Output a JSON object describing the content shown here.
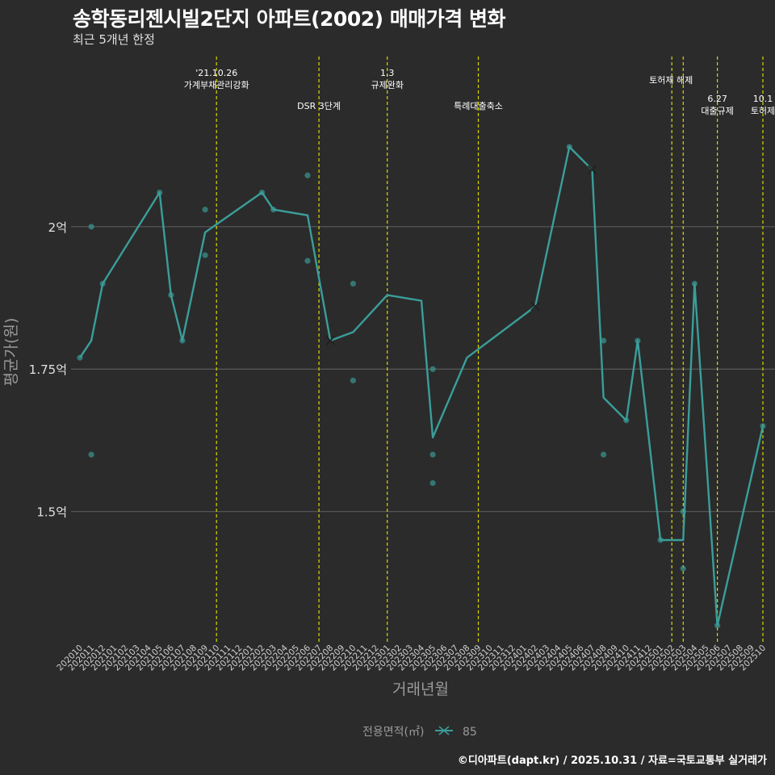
{
  "header": {
    "title": "송학동리젠시빌2단지 아파트(2002) 매매가격 변화",
    "subtitle": "최근 5개년 한정"
  },
  "footer": {
    "credit": "©디아파트(dapt.kr) / 2025.10.31 / 자료=국토교통부 실거래가"
  },
  "colors": {
    "background": "#2b2b2b",
    "line": "#3a9e9a",
    "event": "#d8d800",
    "grid": "#5a5a5a"
  },
  "chart_data": {
    "type": "line",
    "title": "송학동리젠시빌2단지 아파트(2002) 매매가격 변화",
    "xlabel": "거래년월",
    "ylabel": "평균가(원)",
    "ylim": [
      1.27,
      2.31
    ],
    "yticks": [
      {
        "v": 1.5,
        "label": "1.5억"
      },
      {
        "v": 1.75,
        "label": "1.75억"
      },
      {
        "v": 2.0,
        "label": "2억"
      }
    ],
    "categories": [
      "202010",
      "202011",
      "202012",
      "202101",
      "202102",
      "202103",
      "202104",
      "202105",
      "202106",
      "202107",
      "202108",
      "202109",
      "202110",
      "202111",
      "202112",
      "202201",
      "202202",
      "202203",
      "202204",
      "202205",
      "202206",
      "202207",
      "202208",
      "202209",
      "202210",
      "202211",
      "202212",
      "202301",
      "202302",
      "202303",
      "202304",
      "202305",
      "202306",
      "202307",
      "202308",
      "202309",
      "202310",
      "202311",
      "202312",
      "202401",
      "202402",
      "202403",
      "202404",
      "202405",
      "202406",
      "202407",
      "202408",
      "202409",
      "202410",
      "202411",
      "202412",
      "202501",
      "202502",
      "202503",
      "202504",
      "202505",
      "202506",
      "202507",
      "202508",
      "202509",
      "202510"
    ],
    "legend": {
      "title": "전용면적(㎡)",
      "items": [
        "85"
      ]
    },
    "series": [
      {
        "name": "85",
        "line": [
          {
            "x": "202010",
            "y": 1.77
          },
          {
            "x": "202011",
            "y": 1.8
          },
          {
            "x": "202012",
            "y": 1.9
          },
          {
            "x": "202105",
            "y": 2.06
          },
          {
            "x": "202106",
            "y": 1.88
          },
          {
            "x": "202107",
            "y": 1.8
          },
          {
            "x": "202109",
            "y": 1.99
          },
          {
            "x": "202202",
            "y": 2.06
          },
          {
            "x": "202203",
            "y": 2.03
          },
          {
            "x": "202206",
            "y": 2.02
          },
          {
            "x": "202208",
            "y": 1.8
          },
          {
            "x": "202210",
            "y": 1.815
          },
          {
            "x": "202301",
            "y": 1.88
          },
          {
            "x": "202304",
            "y": 1.87
          },
          {
            "x": "202305",
            "y": 1.63
          },
          {
            "x": "202308",
            "y": 1.77
          },
          {
            "x": "202402",
            "y": 1.86
          },
          {
            "x": "202405",
            "y": 2.14
          },
          {
            "x": "202407",
            "y": 2.1
          },
          {
            "x": "202408",
            "y": 1.7
          },
          {
            "x": "202410",
            "y": 1.66
          },
          {
            "x": "202411",
            "y": 1.8
          },
          {
            "x": "202501",
            "y": 1.45
          },
          {
            "x": "202503",
            "y": 1.45
          },
          {
            "x": "202504",
            "y": 1.9
          },
          {
            "x": "202506",
            "y": 1.3
          },
          {
            "x": "202510",
            "y": 1.65
          }
        ],
        "points": [
          {
            "x": "202010",
            "y": 1.77
          },
          {
            "x": "202011",
            "y": 2.0
          },
          {
            "x": "202011",
            "y": 1.6
          },
          {
            "x": "202012",
            "y": 1.9
          },
          {
            "x": "202105",
            "y": 2.06
          },
          {
            "x": "202106",
            "y": 1.88
          },
          {
            "x": "202107",
            "y": 1.8
          },
          {
            "x": "202109",
            "y": 2.03
          },
          {
            "x": "202109",
            "y": 1.95
          },
          {
            "x": "202202",
            "y": 2.06
          },
          {
            "x": "202203",
            "y": 2.03
          },
          {
            "x": "202206",
            "y": 2.09
          },
          {
            "x": "202206",
            "y": 1.94
          },
          {
            "x": "202210",
            "y": 1.9
          },
          {
            "x": "202210",
            "y": 1.73
          },
          {
            "x": "202305",
            "y": 1.75
          },
          {
            "x": "202305",
            "y": 1.6
          },
          {
            "x": "202305",
            "y": 1.55
          },
          {
            "x": "202405",
            "y": 2.14
          },
          {
            "x": "202408",
            "y": 1.8
          },
          {
            "x": "202408",
            "y": 1.6
          },
          {
            "x": "202410",
            "y": 1.66
          },
          {
            "x": "202411",
            "y": 1.8
          },
          {
            "x": "202501",
            "y": 1.45
          },
          {
            "x": "202503",
            "y": 1.5
          },
          {
            "x": "202503",
            "y": 1.4
          },
          {
            "x": "202504",
            "y": 1.9
          },
          {
            "x": "202506",
            "y": 1.3
          },
          {
            "x": "202510",
            "y": 1.65
          }
        ],
        "cross_markers": [
          {
            "x": "202208",
            "y": 1.8
          },
          {
            "x": "202402",
            "y": 1.86
          },
          {
            "x": "202407",
            "y": 2.1
          }
        ]
      }
    ],
    "events": [
      {
        "x": "202110",
        "lines": [
          "'21.10.26",
          "가계부채관리강화"
        ],
        "row": "top"
      },
      {
        "x": "202207",
        "lines": [
          "DSR 3단계"
        ],
        "row": "mid"
      },
      {
        "x": "202301",
        "lines": [
          "1.3",
          "규제완화"
        ],
        "row": "top"
      },
      {
        "x": "202309",
        "lines": [
          "특례대출축소"
        ],
        "row": "mid"
      },
      {
        "x": "202502",
        "lines": [
          "토허제 해제"
        ],
        "row": "top2"
      },
      {
        "x": "202503",
        "lines": [],
        "row": "none"
      },
      {
        "x": "202506",
        "lines": [
          "6.27",
          "대출규제"
        ],
        "row": "right"
      },
      {
        "x": "202510",
        "lines": [
          "10.1",
          "토허제"
        ],
        "row": "right"
      }
    ]
  }
}
